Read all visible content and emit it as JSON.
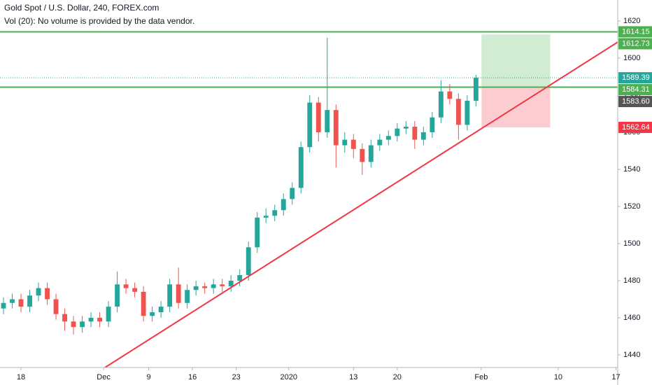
{
  "chart_data": {
    "type": "candlestick",
    "title": "Gold Spot / U.S. Dollar, 240, FOREX.com",
    "subtitle": "Vol (20): No volume is provided by the data vendor.",
    "up_color": "#26a69a",
    "down_color": "#ef5350",
    "xlim": [
      -2.4,
      68.2
    ],
    "ylim": [
      1433.2,
      1631.3
    ],
    "yticks": [
      1440,
      1460,
      1480,
      1500,
      1520,
      1540,
      1560,
      1580,
      1600,
      1620
    ],
    "xticks": [
      {
        "value": 0,
        "label": "18"
      },
      {
        "value": 9.44,
        "label": "Dec"
      },
      {
        "value": 14.6,
        "label": "9"
      },
      {
        "value": 19.6,
        "label": "16"
      },
      {
        "value": 24.6,
        "label": "23"
      },
      {
        "value": 30.6,
        "label": "2020"
      },
      {
        "value": 38,
        "label": "13"
      },
      {
        "value": 43,
        "label": "20"
      },
      {
        "value": 52.6,
        "label": "Feb"
      },
      {
        "value": 61.4,
        "label": "10"
      },
      {
        "value": 68,
        "label": "17"
      }
    ],
    "series": [
      {
        "x": [
          -2,
          -1,
          0,
          1,
          2,
          3,
          4,
          5,
          6,
          7,
          8,
          9,
          10,
          11,
          12,
          13,
          14,
          15,
          16,
          17,
          18,
          19,
          20,
          21,
          22,
          23,
          24,
          25,
          26,
          27,
          28,
          29,
          30,
          31,
          32,
          33,
          34,
          35,
          36,
          37,
          38,
          39,
          40,
          41,
          42,
          43,
          44,
          45,
          46,
          47,
          48,
          49,
          50,
          51,
          52
        ],
        "ohlc": [
          [
            1465,
            1471,
            1462,
            1468
          ],
          [
            1468,
            1473,
            1465,
            1470
          ],
          [
            1470,
            1473,
            1463,
            1466
          ],
          [
            1466,
            1475,
            1463,
            1472
          ],
          [
            1472,
            1479,
            1469,
            1476
          ],
          [
            1476,
            1479,
            1467,
            1470
          ],
          [
            1470,
            1473,
            1459,
            1462
          ],
          [
            1462,
            1465,
            1453,
            1458
          ],
          [
            1458,
            1461,
            1451,
            1455
          ],
          [
            1455,
            1461,
            1452,
            1458
          ],
          [
            1458,
            1463,
            1455,
            1460
          ],
          [
            1460,
            1463,
            1455,
            1458
          ],
          [
            1458,
            1469,
            1455,
            1466
          ],
          [
            1466,
            1485,
            1463,
            1478
          ],
          [
            1478,
            1481,
            1473,
            1476
          ],
          [
            1476,
            1479,
            1471,
            1474
          ],
          [
            1474,
            1477,
            1458,
            1461
          ],
          [
            1461,
            1466,
            1458,
            1463
          ],
          [
            1463,
            1469,
            1460,
            1466
          ],
          [
            1466,
            1481,
            1463,
            1478
          ],
          [
            1478,
            1487,
            1465,
            1468
          ],
          [
            1468,
            1478,
            1465,
            1475
          ],
          [
            1475,
            1480,
            1472,
            1477
          ],
          [
            1477,
            1479,
            1473,
            1476
          ],
          [
            1476,
            1481,
            1473,
            1478
          ],
          [
            1478,
            1481,
            1474,
            1477
          ],
          [
            1477,
            1483,
            1474,
            1480
          ],
          [
            1480,
            1486,
            1477,
            1483
          ],
          [
            1483,
            1501,
            1480,
            1498
          ],
          [
            1498,
            1517,
            1495,
            1514
          ],
          [
            1514,
            1519,
            1511,
            1515
          ],
          [
            1515,
            1521,
            1512,
            1518
          ],
          [
            1518,
            1527,
            1515,
            1524
          ],
          [
            1524,
            1533,
            1521,
            1530
          ],
          [
            1530,
            1555,
            1527,
            1552
          ],
          [
            1552,
            1580,
            1549,
            1576
          ],
          [
            1576,
            1579,
            1555,
            1560
          ],
          [
            1560,
            1611,
            1557,
            1572
          ],
          [
            1572,
            1575,
            1541,
            1553
          ],
          [
            1553,
            1560,
            1549,
            1556
          ],
          [
            1556,
            1559,
            1546,
            1551
          ],
          [
            1551,
            1554,
            1537,
            1544
          ],
          [
            1544,
            1556,
            1541,
            1553
          ],
          [
            1553,
            1559,
            1550,
            1556
          ],
          [
            1556,
            1561,
            1553,
            1558
          ],
          [
            1558,
            1565,
            1555,
            1562
          ],
          [
            1562,
            1566,
            1559,
            1563
          ],
          [
            1563,
            1566,
            1551,
            1556
          ],
          [
            1556,
            1563,
            1553,
            1560
          ],
          [
            1560,
            1571,
            1557,
            1568
          ],
          [
            1568,
            1588,
            1565,
            1582
          ],
          [
            1582,
            1586,
            1575,
            1578
          ],
          [
            1578,
            1581,
            1556,
            1564
          ],
          [
            1564,
            1580,
            1561,
            1577
          ],
          [
            1577,
            1591,
            1574,
            1589.39
          ]
        ]
      }
    ],
    "horizontal_lines": [
      {
        "value": 1614.15,
        "color": "#4caf50"
      },
      {
        "value": 1584.31,
        "color": "#4caf50"
      }
    ],
    "last_price": {
      "value": 1589.39,
      "color": "#26a69a"
    },
    "trend_line": {
      "x": [
        9.6,
        68.24
      ],
      "y": [
        1433.2,
        1608.7
      ],
      "color": "#f23645"
    },
    "position": {
      "x": [
        52.64,
        60.48
      ],
      "entry": 1584.31,
      "target": 1612.73,
      "stop": 1562.64
    },
    "price_labels": [
      {
        "value": 1614.15,
        "color": "#4caf50"
      },
      {
        "value": 1612.73,
        "color": "#4caf50"
      },
      {
        "value": 1589.39,
        "color": "#26a69a"
      },
      {
        "value": 1584.31,
        "color": "#4caf50"
      },
      {
        "value": {
          "value": 1583.6,
          "label": "1583.60"
        },
        "color": "#555555"
      },
      {
        "value": 1562.64,
        "color": "#f23645"
      }
    ]
  }
}
